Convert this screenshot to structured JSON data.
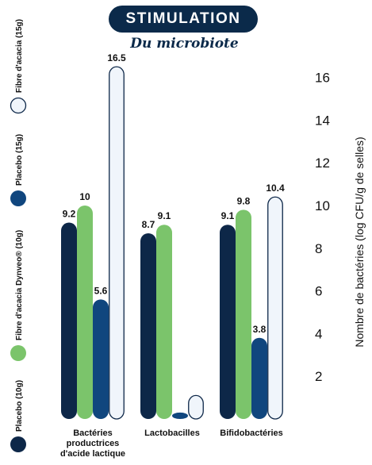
{
  "header": {
    "title": "STIMULATION",
    "subtitle": "Du microbiote"
  },
  "chart_data": {
    "type": "bar",
    "title": "STIMULATION",
    "subtitle": "Du microbiote",
    "ylabel": "Nombre de bactéries (log CFU/g de selles)",
    "xlabel": "",
    "ylim": [
      0,
      16.5
    ],
    "yticks": [
      2,
      4,
      6,
      8,
      10,
      12,
      14,
      16
    ],
    "legend_position": "left (rotated)",
    "grid": false,
    "categories": [
      [
        "Bactéries",
        "productrices",
        "d'acide lactique"
      ],
      [
        "Lactobacilles"
      ],
      [
        "Bifidobactéries"
      ]
    ],
    "series": [
      {
        "name": "Placebo (10g)",
        "values": [
          9.2,
          8.7,
          9.1
        ],
        "labels": [
          "9.2",
          "8.7",
          "9.1"
        ],
        "color": "#0d2748",
        "style": "filled"
      },
      {
        "name": "Fibre d'acacia Dynveo® (10g)",
        "values": [
          10,
          9.1,
          9.8
        ],
        "labels": [
          "10",
          "9.1",
          "9.8"
        ],
        "color": "#7bc46b",
        "style": "filled"
      },
      {
        "name": "Placebo (15g)",
        "values": [
          5.6,
          0.3,
          3.8
        ],
        "labels": [
          "5.6",
          "",
          "3.8"
        ],
        "color": "#10467e",
        "style": "filled"
      },
      {
        "name": "Fibre d'acacia (15g)",
        "values": [
          16.5,
          1.1,
          10.4
        ],
        "labels": [
          "16.5",
          "",
          "10.4"
        ],
        "color": "#f0f5fb",
        "stroke": "#0d2748",
        "style": "outline"
      }
    ]
  }
}
